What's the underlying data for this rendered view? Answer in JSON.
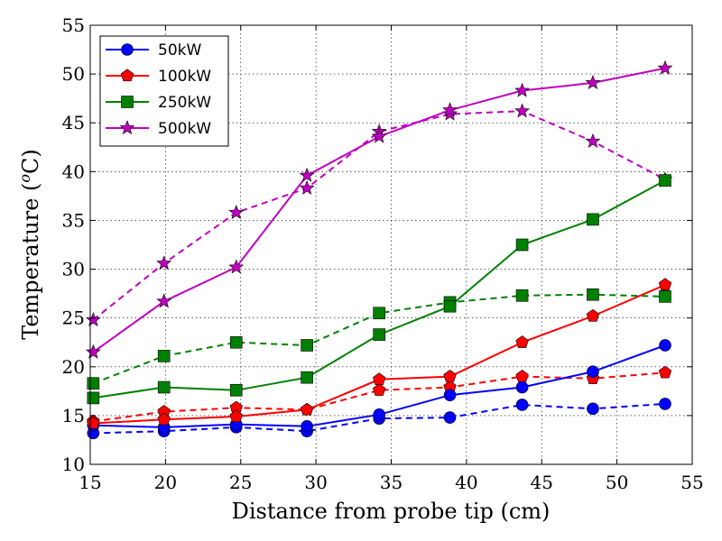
{
  "chart_data": {
    "type": "line",
    "xlabel": "Distance from probe tip (cm)",
    "ylabel_main": "Temperature (",
    "ylabel_sup": "o",
    "ylabel_unit": "C)",
    "xlim": [
      15,
      55
    ],
    "ylim": [
      10,
      55
    ],
    "xticks": [
      15,
      20,
      25,
      30,
      35,
      40,
      45,
      50,
      55
    ],
    "yticks": [
      10,
      15,
      20,
      25,
      30,
      35,
      40,
      45,
      50,
      55
    ],
    "grid": true,
    "legend_position": "top-left",
    "x": [
      15.2,
      19.9,
      24.7,
      29.4,
      34.2,
      38.9,
      43.7,
      48.4,
      53.2
    ],
    "series": [
      {
        "name": "50kW",
        "color": "#0000ff",
        "marker": "circle",
        "solid": [
          14.0,
          13.8,
          14.1,
          13.9,
          15.1,
          17.1,
          17.9,
          19.5,
          22.2
        ],
        "dashed": [
          13.2,
          13.4,
          13.8,
          13.4,
          14.7,
          14.8,
          16.1,
          15.7,
          16.2
        ]
      },
      {
        "name": "100kW",
        "color": "#ff0000",
        "marker": "pentagon",
        "solid": [
          14.2,
          14.6,
          14.9,
          15.6,
          18.7,
          19.0,
          22.5,
          25.2,
          28.4
        ],
        "dashed": [
          14.4,
          15.4,
          15.8,
          15.6,
          17.6,
          17.9,
          19.0,
          18.8,
          19.4
        ]
      },
      {
        "name": "250kW",
        "color": "#008000",
        "marker": "square",
        "solid": [
          16.8,
          17.9,
          17.6,
          18.9,
          23.3,
          26.2,
          32.5,
          35.1,
          39.1
        ],
        "dashed": [
          18.3,
          21.1,
          22.5,
          22.2,
          25.5,
          26.6,
          27.3,
          27.4,
          27.2
        ]
      },
      {
        "name": "500kW",
        "color": "#bf00bf",
        "marker": "star",
        "solid": [
          21.5,
          26.7,
          30.2,
          39.6,
          43.6,
          46.3,
          48.3,
          49.1,
          50.6
        ],
        "dashed": [
          24.8,
          30.6,
          35.8,
          38.3,
          44.1,
          45.9,
          46.2,
          43.1,
          39.2
        ]
      }
    ]
  }
}
